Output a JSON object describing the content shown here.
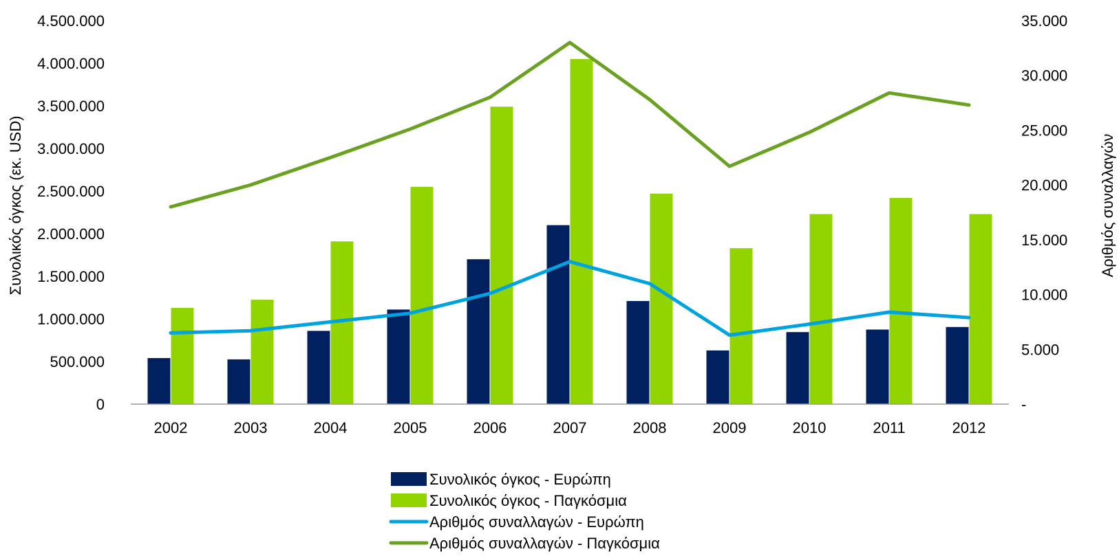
{
  "chart_data": {
    "type": "bar",
    "categories": [
      "2002",
      "2003",
      "2004",
      "2005",
      "2006",
      "2007",
      "2008",
      "2009",
      "2010",
      "2011",
      "2012"
    ],
    "ylabel": "Συνολικός όγκος (εκ. USD)",
    "y2label": "Αριθμός συναλλαγών",
    "ylim": [
      0,
      4500000
    ],
    "y2lim": [
      0,
      35000
    ],
    "y_ticks": [
      "0",
      "500.000",
      "1.000.000",
      "1.500.000",
      "2.000.000",
      "2.500.000",
      "3.000.000",
      "3.500.000",
      "4.000.000",
      "4.500.000"
    ],
    "y2_ticks": [
      "-",
      "5.000",
      "10.000",
      "15.000",
      "20.000",
      "25.000",
      "30.000",
      "35.000"
    ],
    "legend_position": "bottom",
    "grid": false,
    "bar_series": [
      {
        "name": "Συνολικός όγκος - Ευρώπη",
        "color": "#002060",
        "axis": "left",
        "values": [
          540000,
          525000,
          860000,
          1110000,
          1700000,
          2100000,
          1210000,
          630000,
          845000,
          875000,
          905000
        ]
      },
      {
        "name": "Συνολικός όγκος - Παγκόσμια",
        "color": "#92D400",
        "axis": "left",
        "values": [
          1130000,
          1225000,
          1910000,
          2550000,
          3490000,
          4050000,
          2470000,
          1830000,
          2230000,
          2420000,
          2230000
        ]
      }
    ],
    "line_series": [
      {
        "name": "Αριθμός συναλλαγών - Ευρώπη",
        "color": "#00A3E0",
        "axis": "right",
        "values": [
          6500,
          6700,
          7500,
          8300,
          10100,
          13000,
          11000,
          6300,
          7300,
          8400,
          7900
        ]
      },
      {
        "name": "Αριθμός συναλλαγών - Παγκόσμια",
        "color": "#6AA121",
        "axis": "right",
        "values": [
          18000,
          20000,
          22500,
          25100,
          28000,
          33000,
          27800,
          21700,
          24800,
          28400,
          27300
        ]
      }
    ]
  }
}
